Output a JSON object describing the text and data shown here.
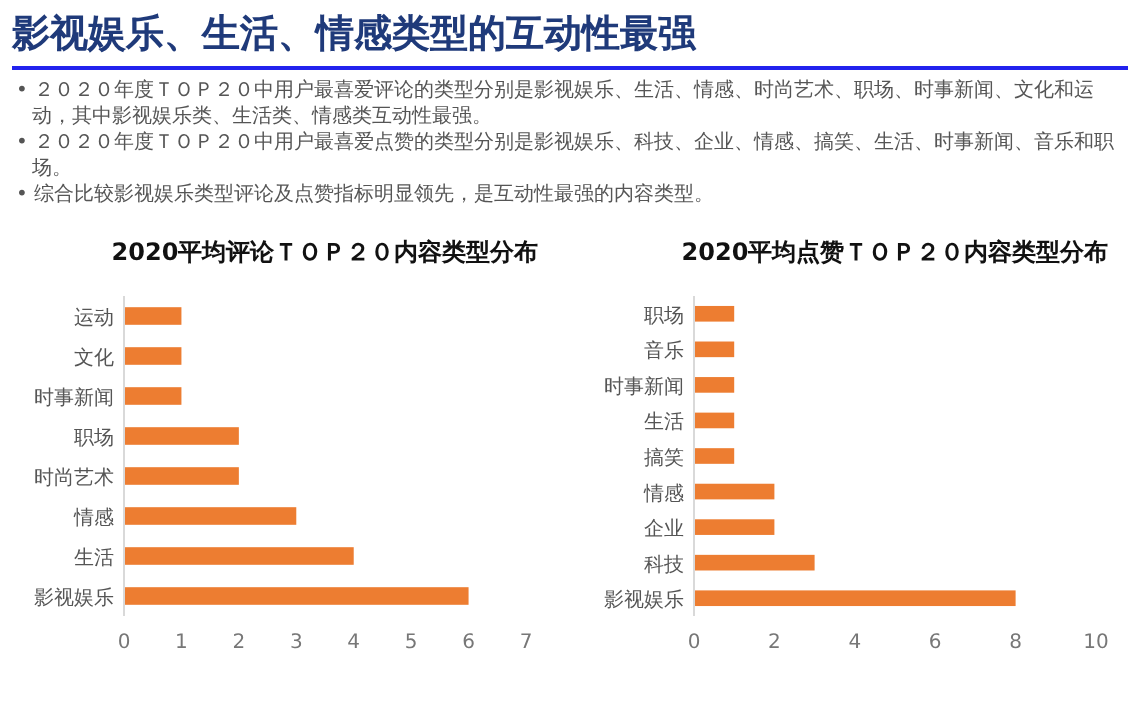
{
  "chart_data": [
    {
      "type": "other",
      "title": "影视娱乐、生活、情感类型的互动性最强",
      "annotations": [
        "• ２０２０年度ＴＯＰ２０中用户最喜爱评论的类型分别是影视娱乐、生活、情感、时尚艺术、职场、时事新闻、文化和运动，其中影视娱乐类、生活类、情感类互动性最强。",
        "• ２０２０年度ＴＯＰ２０中用户最喜爱点赞的类型分别是影视娱乐、科技、企业、情感、搞笑、生活、时事新闻、音乐和职场。",
        "• 综合比较影视娱乐类型评论及点赞指标明显领先，是互动性最强的内容类型。"
      ]
    },
    {
      "type": "bar",
      "orientation": "horizontal",
      "title": "2020平均评论ＴＯＰ２０内容类型分布",
      "categories": [
        "运动",
        "文化",
        "时事新闻",
        "职场",
        "时尚艺术",
        "情感",
        "生活",
        "影视娱乐"
      ],
      "values": [
        1,
        1,
        1,
        2,
        2,
        3,
        4,
        6
      ],
      "color": "#ed7d31",
      "xlim": [
        0,
        7
      ],
      "xticks": [
        0,
        1,
        2,
        3,
        4,
        5,
        6,
        7
      ]
    },
    {
      "type": "bar",
      "orientation": "horizontal",
      "title": "2020平均点赞ＴＯＰ２０内容类型分布",
      "categories": [
        "职场",
        "音乐",
        "时事新闻",
        "生活",
        "搞笑",
        "情感",
        "企业",
        "科技",
        "影视娱乐"
      ],
      "values": [
        1,
        1,
        1,
        1,
        1,
        2,
        2,
        3,
        8
      ],
      "color": "#ed7d31",
      "xlim": [
        0,
        10
      ],
      "xticks": [
        0,
        2,
        4,
        6,
        8,
        10
      ]
    }
  ]
}
